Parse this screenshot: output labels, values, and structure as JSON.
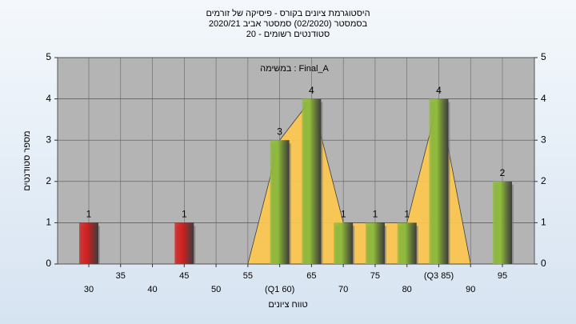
{
  "chart_data": {
    "type": "bar",
    "title": [
      "היסטוגרמת ציונים בקורס - פיסיקה של זורמים",
      "בסמסטר  (02/2020)  סמסטר אביב 2020/21",
      "סטודנטים רשומים - 20"
    ],
    "annotation": "במשימה : Final_A",
    "x_label": "טווח ציונים",
    "y_label": "מספר סטודנטים",
    "categories": [
      "30",
      "35",
      "40",
      "45",
      "50",
      "55",
      "(Q1 60)",
      "65",
      "70",
      "75",
      "80",
      "(Q3 85)",
      "90",
      "95"
    ],
    "series": [
      {
        "values": [
          1,
          0,
          0,
          1,
          0,
          0,
          3,
          4,
          1,
          1,
          1,
          4,
          0,
          2
        ],
        "colors": [
          "#d42020",
          "#d42020",
          "#d42020",
          "#d42020",
          "#d42020",
          "#d42020",
          "#8fbc3a",
          "#8fbc3a",
          "#8fbc3a",
          "#8fbc3a",
          "#8fbc3a",
          "#8fbc3a",
          "#8fbc3a",
          "#8fbc3a"
        ]
      }
    ],
    "area_color": "#ffc94d",
    "ylim": [
      0,
      5
    ],
    "yticks": [
      0,
      1,
      2,
      3,
      4,
      5
    ],
    "grid": true
  }
}
